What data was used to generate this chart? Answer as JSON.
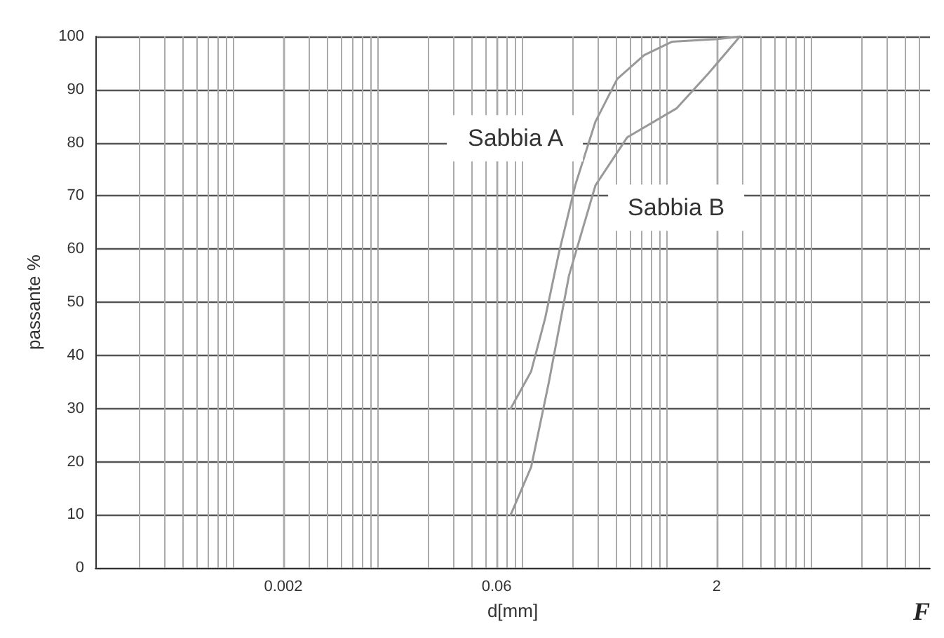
{
  "chart_data": {
    "type": "line",
    "xlabel": "d[mm]",
    "ylabel": "passante %",
    "log": "x",
    "xlim": [
      0.0001,
      60
    ],
    "xticks": [
      0.002,
      0.06,
      2
    ],
    "ylim": [
      0,
      100
    ],
    "yticks": [
      0,
      10,
      20,
      30,
      40,
      50,
      60,
      70,
      80,
      90,
      100
    ],
    "grid": true,
    "legend": false,
    "marker": "none",
    "annotations": [
      "F"
    ],
    "series": [
      {
        "name": "Sabbia A",
        "color": "#999999",
        "x": [
          0.075,
          0.104,
          0.13,
          0.161,
          0.21,
          0.29,
          0.41,
          0.63,
          0.98,
          2.04,
          2.9
        ],
        "values": [
          30,
          37,
          47,
          59,
          72,
          84,
          92,
          96.5,
          99,
          99.5,
          100
        ]
      },
      {
        "name": "Sabbia B",
        "color": "#999999",
        "x": [
          0.075,
          0.104,
          0.138,
          0.19,
          0.29,
          0.48,
          1.06,
          1.75,
          2.9
        ],
        "values": [
          10,
          19,
          35,
          55,
          72,
          81,
          86.5,
          93,
          100
        ]
      }
    ]
  }
}
